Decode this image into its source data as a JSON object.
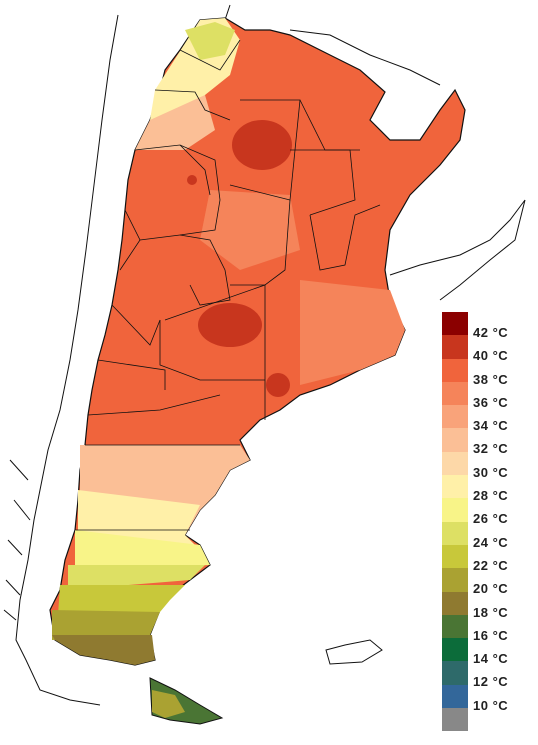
{
  "legend": {
    "items": [
      {
        "label": "42 °C",
        "color": "#8b0000"
      },
      {
        "label": "40 °C",
        "color": "#c8361e"
      },
      {
        "label": "38 °C",
        "color": "#f0643c"
      },
      {
        "label": "36 °C",
        "color": "#f5845a"
      },
      {
        "label": "34 °C",
        "color": "#f9a37a"
      },
      {
        "label": "32 °C",
        "color": "#fbbf96"
      },
      {
        "label": "30 °C",
        "color": "#fdd8a8"
      },
      {
        "label": "28 °C",
        "color": "#fff0a8"
      },
      {
        "label": "26 °C",
        "color": "#f8f488"
      },
      {
        "label": "24 °C",
        "color": "#dde064"
      },
      {
        "label": "22 °C",
        "color": "#c8c83a"
      },
      {
        "label": "20 °C",
        "color": "#aaa232"
      },
      {
        "label": "18 °C",
        "color": "#8f7a30"
      },
      {
        "label": "16 °C",
        "color": "#4a7534"
      },
      {
        "label": "14 °C",
        "color": "#0c6c3a"
      },
      {
        "label": "12 °C",
        "color": "#2e6a6a"
      },
      {
        "label": "10 °C",
        "color": "#33679a"
      },
      {
        "label": "",
        "color": "#888888"
      }
    ]
  },
  "map": {
    "region_colors": {
      "hot_core": "#c8361e",
      "hot": "#f0643c",
      "warm": "#f5845a",
      "mild": "#fbbf96",
      "cool": "#fff0a8",
      "cold": "#c8c83a",
      "coldest": "#8f7a30"
    }
  }
}
